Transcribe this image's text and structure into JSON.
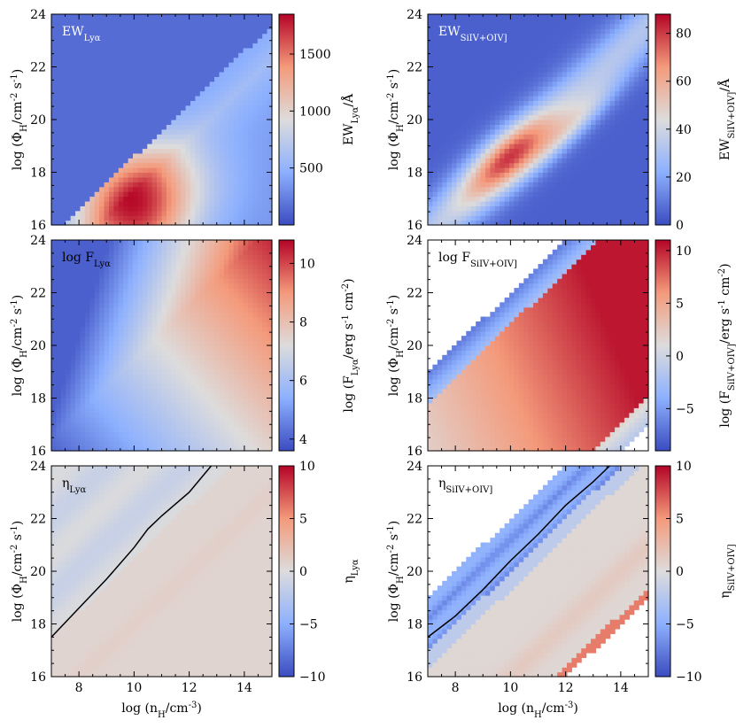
{
  "figure": {
    "shared_xlabel": "log (n_H/cm^-3)",
    "shared_ylabel": "log (Φ_H/cm^-2 s^-1)"
  },
  "chart_data": [
    {
      "type": "heatmap",
      "id": "ew-lya",
      "title": "EW_Lyα",
      "xlabel": "log (n_H/cm^-3)",
      "ylabel": "log (Φ_H/cm^-2 s^-1)",
      "xlim": [
        7,
        15
      ],
      "ylim": [
        16,
        24
      ],
      "xticks": [
        8,
        10,
        12,
        14
      ],
      "yticks": [
        16,
        18,
        20,
        22,
        24
      ],
      "colorbar": {
        "label": "EW_Lyα/Å",
        "range": [
          0,
          1850
        ],
        "ticks": [
          500,
          1000,
          1500
        ]
      },
      "peak": {
        "x": 10.0,
        "y": 16.3
      },
      "contour": false
    },
    {
      "type": "heatmap",
      "id": "ew-siv-oiv",
      "title": "EW_SiIV+OIV]",
      "xlabel": "log (n_H/cm^-3)",
      "ylabel": "log (Φ_H/cm^-2 s^-1)",
      "xlim": [
        7,
        15
      ],
      "ylim": [
        16,
        24
      ],
      "xticks": [
        8,
        10,
        12,
        14
      ],
      "yticks": [
        16,
        18,
        20,
        22,
        24
      ],
      "colorbar": {
        "label": "EW_SiIV+OIV]/Å",
        "range": [
          0,
          88
        ],
        "ticks": [
          0,
          20,
          40,
          60,
          80
        ]
      },
      "peak": {
        "x": 9.8,
        "y": 18.7
      },
      "contour": false
    },
    {
      "type": "heatmap",
      "id": "flux-lya",
      "title": "log F_Lyα",
      "xlabel": "log (n_H/cm^-3)",
      "ylabel": "log (Φ_H/cm^-2 s^-1)",
      "xlim": [
        7,
        15
      ],
      "ylim": [
        16,
        24
      ],
      "xticks": [
        8,
        10,
        12,
        14
      ],
      "yticks": [
        16,
        18,
        20,
        22,
        24
      ],
      "colorbar": {
        "label": "log (F_Lyα/erg s^-1 cm^-2)",
        "range": [
          3.6,
          10.8
        ],
        "ticks": [
          4,
          6,
          8,
          10
        ]
      },
      "peak": {
        "x": 14.5,
        "y": 23.8
      },
      "contour": false
    },
    {
      "type": "heatmap",
      "id": "flux-siv-oiv",
      "title": "log F_SiIV+OIV]",
      "xlabel": "log (n_H/cm^-3)",
      "ylabel": "log (Φ_H/cm^-2 s^-1)",
      "xlim": [
        7,
        15
      ],
      "ylim": [
        16,
        24
      ],
      "xticks": [
        8,
        10,
        12,
        14
      ],
      "yticks": [
        16,
        18,
        20,
        22,
        24
      ],
      "colorbar": {
        "label": "log (F_SiIV+OIV]/erg s^-1 cm^-2)",
        "range": [
          -9,
          11
        ],
        "ticks": [
          -5,
          0,
          5,
          10
        ]
      },
      "valid_band": {
        "upper_intercept": 12.0,
        "lower_intercept": 2.0,
        "slope": 1.0
      },
      "contour": false
    },
    {
      "type": "heatmap",
      "id": "eta-lya",
      "title": "η_Lyα",
      "xlabel": "log (n_H/cm^-3)",
      "ylabel": "log (Φ_H/cm^-2 s^-1)",
      "xlim": [
        7,
        15
      ],
      "ylim": [
        16,
        24
      ],
      "xticks": [
        8,
        10,
        12,
        14
      ],
      "yticks": [
        16,
        18,
        20,
        22,
        24
      ],
      "colorbar": {
        "label": "η_Lyα",
        "range": [
          -10,
          10
        ],
        "ticks": [
          -10,
          -5,
          0,
          5,
          10
        ]
      },
      "contour": true,
      "contour_points": [
        [
          7,
          17.5
        ],
        [
          8,
          18.6
        ],
        [
          9,
          19.7
        ],
        [
          10,
          20.9
        ],
        [
          10.5,
          21.6
        ],
        [
          11,
          22.1
        ],
        [
          12,
          23.0
        ],
        [
          12.8,
          24
        ]
      ]
    },
    {
      "type": "heatmap",
      "id": "eta-siv-oiv",
      "title": "η_SiIV+OIV]",
      "xlabel": "log (n_H/cm^-3)",
      "ylabel": "log (Φ_H/cm^-2 s^-1)",
      "xlim": [
        7,
        15
      ],
      "ylim": [
        16,
        24
      ],
      "xticks": [
        8,
        10,
        12,
        14
      ],
      "yticks": [
        16,
        18,
        20,
        22,
        24
      ],
      "colorbar": {
        "label": "η_SiIV+OIV]",
        "range": [
          -10,
          10
        ],
        "ticks": [
          -10,
          -5,
          0,
          5,
          10
        ]
      },
      "valid_band": {
        "upper_intercept": 12.0,
        "lower_intercept": 4.0,
        "slope": 1.0
      },
      "contour": true,
      "contour_points": [
        [
          7,
          17.5
        ],
        [
          8,
          18.3
        ],
        [
          9,
          19.3
        ],
        [
          10,
          20.4
        ],
        [
          11,
          21.4
        ],
        [
          12,
          22.5
        ],
        [
          13,
          23.4
        ],
        [
          13.6,
          24
        ]
      ]
    }
  ]
}
